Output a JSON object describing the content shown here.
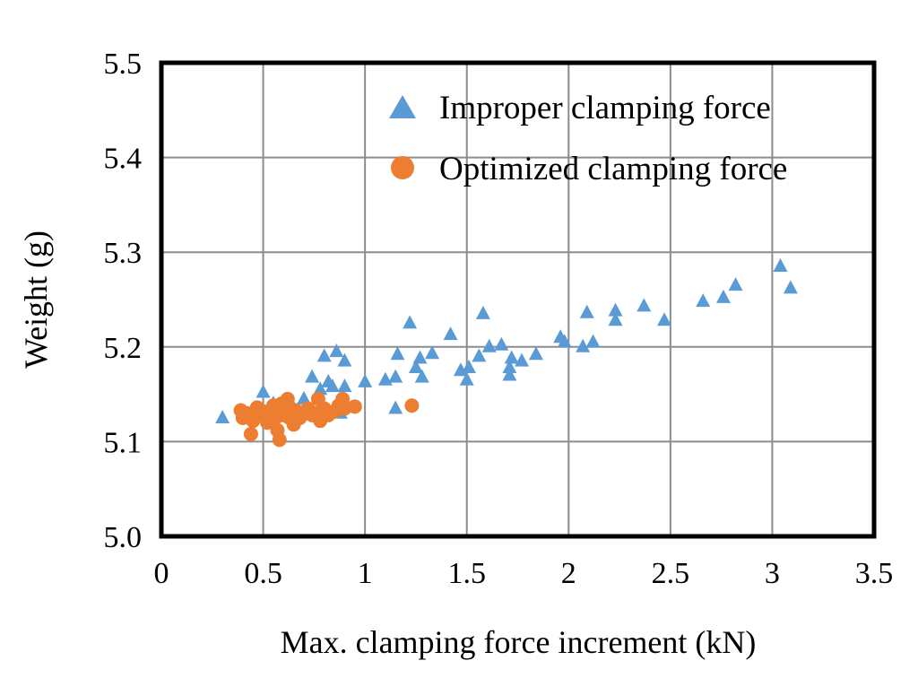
{
  "chart_data": {
    "type": "scatter",
    "xlabel": "Max. clamping force increment (kN)",
    "ylabel": "Weight (g)",
    "xlim": [
      0,
      3.5
    ],
    "ylim": [
      5.0,
      5.5
    ],
    "x_ticks": [
      "0",
      "0.5",
      "1",
      "1.5",
      "2",
      "2.5",
      "3",
      "3.5"
    ],
    "y_ticks": [
      "5.0",
      "5.1",
      "5.2",
      "5.3",
      "5.4",
      "5.5"
    ],
    "grid": true,
    "legend_position": "top-right",
    "series": [
      {
        "name": "Improper clamping force",
        "marker": "triangle",
        "color": "#5b9bd5",
        "points": [
          [
            0.3,
            5.125
          ],
          [
            0.5,
            5.152
          ],
          [
            0.55,
            5.14
          ],
          [
            0.6,
            5.13
          ],
          [
            0.65,
            5.135
          ],
          [
            0.7,
            5.145
          ],
          [
            0.74,
            5.168
          ],
          [
            0.78,
            5.155
          ],
          [
            0.8,
            5.19
          ],
          [
            0.82,
            5.163
          ],
          [
            0.84,
            5.158
          ],
          [
            0.86,
            5.195
          ],
          [
            0.88,
            5.13
          ],
          [
            0.9,
            5.185
          ],
          [
            0.9,
            5.158
          ],
          [
            1.0,
            5.163
          ],
          [
            1.1,
            5.165
          ],
          [
            1.15,
            5.168
          ],
          [
            1.15,
            5.135
          ],
          [
            1.16,
            5.192
          ],
          [
            1.22,
            5.225
          ],
          [
            1.25,
            5.178
          ],
          [
            1.27,
            5.188
          ],
          [
            1.28,
            5.168
          ],
          [
            1.33,
            5.193
          ],
          [
            1.42,
            5.213
          ],
          [
            1.47,
            5.175
          ],
          [
            1.5,
            5.165
          ],
          [
            1.51,
            5.178
          ],
          [
            1.56,
            5.19
          ],
          [
            1.58,
            5.235
          ],
          [
            1.61,
            5.2
          ],
          [
            1.67,
            5.202
          ],
          [
            1.71,
            5.17
          ],
          [
            1.71,
            5.178
          ],
          [
            1.72,
            5.188
          ],
          [
            1.77,
            5.185
          ],
          [
            1.84,
            5.192
          ],
          [
            1.96,
            5.21
          ],
          [
            1.98,
            5.205
          ],
          [
            2.07,
            5.2
          ],
          [
            2.09,
            5.236
          ],
          [
            2.12,
            5.205
          ],
          [
            2.23,
            5.238
          ],
          [
            2.23,
            5.228
          ],
          [
            2.37,
            5.243
          ],
          [
            2.47,
            5.228
          ],
          [
            2.66,
            5.248
          ],
          [
            2.76,
            5.252
          ],
          [
            2.82,
            5.265
          ],
          [
            3.04,
            5.285
          ],
          [
            3.09,
            5.262
          ]
        ]
      },
      {
        "name": "Optimized clamping force",
        "marker": "circle",
        "color": "#ed7d31",
        "points": [
          [
            0.39,
            5.133
          ],
          [
            0.4,
            5.125
          ],
          [
            0.42,
            5.13
          ],
          [
            0.44,
            5.108
          ],
          [
            0.45,
            5.122
          ],
          [
            0.47,
            5.136
          ],
          [
            0.48,
            5.128
          ],
          [
            0.5,
            5.132
          ],
          [
            0.52,
            5.12
          ],
          [
            0.54,
            5.13
          ],
          [
            0.55,
            5.138
          ],
          [
            0.56,
            5.125
          ],
          [
            0.57,
            5.112
          ],
          [
            0.58,
            5.102
          ],
          [
            0.59,
            5.14
          ],
          [
            0.6,
            5.128
          ],
          [
            0.61,
            5.135
          ],
          [
            0.62,
            5.145
          ],
          [
            0.63,
            5.125
          ],
          [
            0.65,
            5.118
          ],
          [
            0.66,
            5.133
          ],
          [
            0.68,
            5.125
          ],
          [
            0.7,
            5.13
          ],
          [
            0.72,
            5.135
          ],
          [
            0.74,
            5.128
          ],
          [
            0.76,
            5.13
          ],
          [
            0.77,
            5.145
          ],
          [
            0.78,
            5.122
          ],
          [
            0.8,
            5.135
          ],
          [
            0.82,
            5.128
          ],
          [
            0.85,
            5.132
          ],
          [
            0.87,
            5.138
          ],
          [
            0.89,
            5.145
          ],
          [
            0.9,
            5.135
          ],
          [
            0.95,
            5.137
          ],
          [
            1.23,
            5.138
          ]
        ]
      }
    ]
  }
}
